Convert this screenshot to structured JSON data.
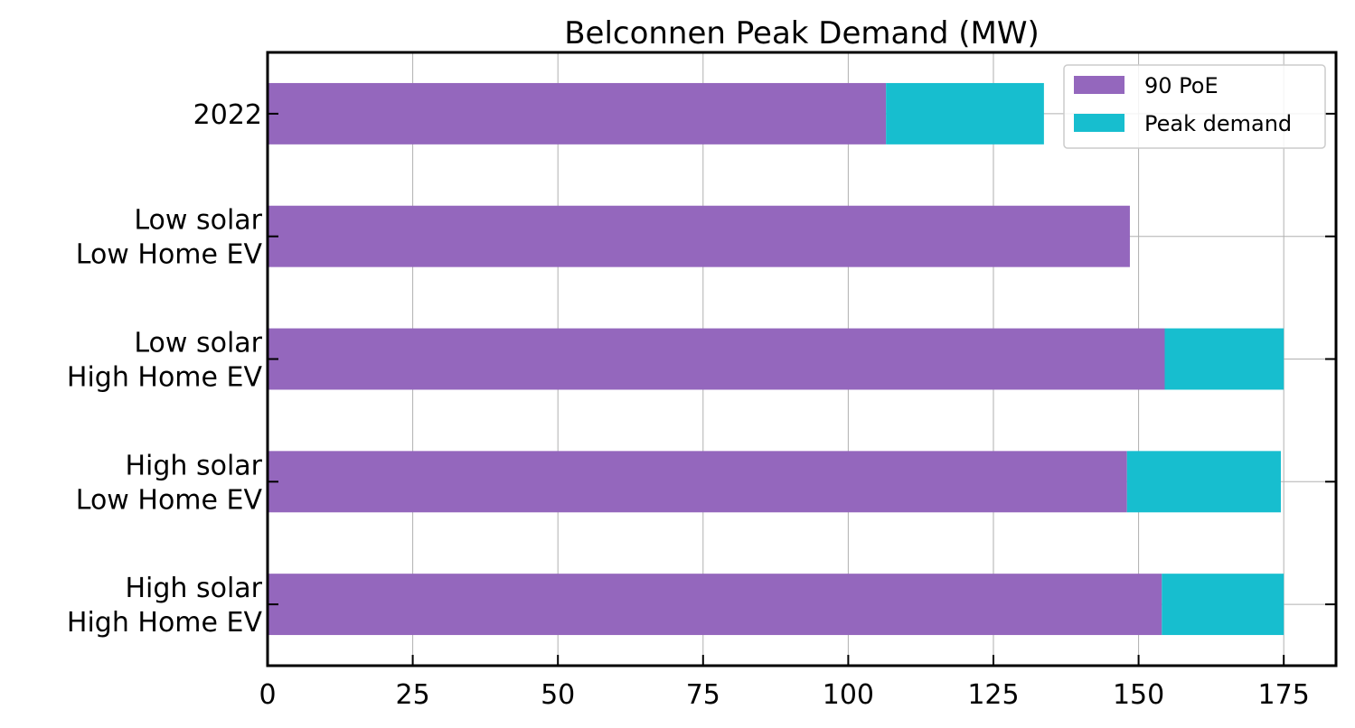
{
  "chart_data": {
    "type": "bar",
    "orientation": "horizontal",
    "stacked": true,
    "title": "Belconnen Peak Demand (MW)",
    "xlabel": "",
    "ylabel": "",
    "xlim": [
      0,
      184
    ],
    "xticks": [
      0,
      25,
      50,
      75,
      100,
      125,
      150,
      175
    ],
    "grid": true,
    "legend_position": "top-right",
    "categories": [
      [
        "2022"
      ],
      [
        "Low solar",
        "Low Home EV"
      ],
      [
        "Low solar",
        "High Home EV"
      ],
      [
        "High solar",
        "Low Home EV"
      ],
      [
        "High solar",
        "High Home EV"
      ]
    ],
    "series": [
      {
        "name": "90 PoE",
        "color": "#9467bd",
        "values": [
          106.5,
          148.5,
          154.5,
          148,
          154
        ]
      },
      {
        "name": "Peak demand",
        "color": "#17becf",
        "values": [
          27.2,
          0,
          20.5,
          26.5,
          21
        ]
      }
    ]
  }
}
